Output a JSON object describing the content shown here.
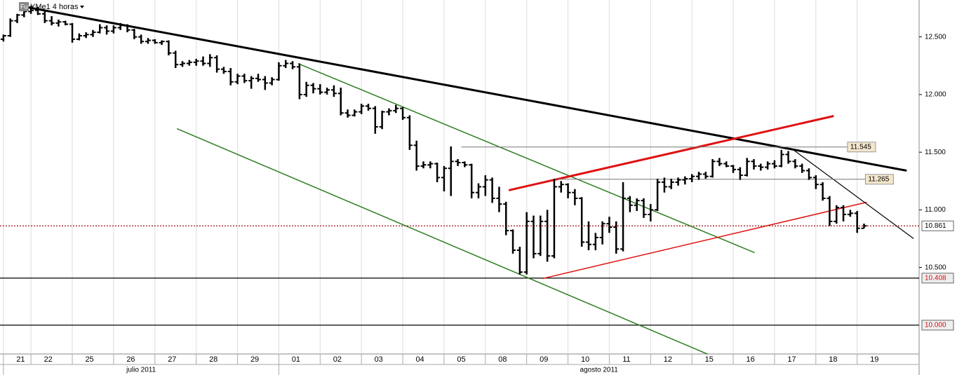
{
  "chart_data": {
    "type": "ohlc",
    "badge": "Fu",
    "title": "YMe1 4 horas",
    "ylim": [
      9750,
      12820
    ],
    "yticks": [
      {
        "value": 10500,
        "label": "10.500"
      },
      {
        "value": 11000,
        "label": "11.000"
      },
      {
        "value": 11500,
        "label": "11.500"
      },
      {
        "value": 12000,
        "label": "12.000"
      },
      {
        "value": 12500,
        "label": "12.500"
      }
    ],
    "xlim": [
      -0.5,
      133
    ],
    "xticks": [
      {
        "value": 0,
        "label": "21"
      },
      {
        "value": 4,
        "label": "22"
      },
      {
        "value": 10,
        "label": "25"
      },
      {
        "value": 16,
        "label": "26"
      },
      {
        "value": 22,
        "label": "27"
      },
      {
        "value": 28,
        "label": "28"
      },
      {
        "value": 34,
        "label": "29"
      },
      {
        "value": 40,
        "label": "01"
      },
      {
        "value": 46,
        "label": "02"
      },
      {
        "value": 52,
        "label": "03"
      },
      {
        "value": 58,
        "label": "04"
      },
      {
        "value": 64,
        "label": "05"
      },
      {
        "value": 70,
        "label": "08"
      },
      {
        "value": 76,
        "label": "09"
      },
      {
        "value": 82,
        "label": "10"
      },
      {
        "value": 88,
        "label": "11"
      },
      {
        "value": 94,
        "label": "12"
      },
      {
        "value": 100,
        "label": "15"
      },
      {
        "value": 106,
        "label": "16"
      },
      {
        "value": 112,
        "label": "17"
      },
      {
        "value": 118,
        "label": "18"
      },
      {
        "value": 124,
        "label": "19"
      }
    ],
    "months": [
      {
        "value": 0,
        "label": "julio 2011"
      },
      {
        "value": 40,
        "label": "agosto 2011"
      }
    ],
    "grid": "x",
    "color": "#000000",
    "ohlc": [
      [
        12480,
        12520,
        12460,
        12510
      ],
      [
        12510,
        12660,
        12500,
        12640
      ],
      [
        12640,
        12700,
        12620,
        12690
      ],
      [
        12690,
        12740,
        12670,
        12720
      ],
      [
        12720,
        12770,
        12700,
        12730
      ],
      [
        12730,
        12760,
        12690,
        12700
      ],
      [
        12700,
        12720,
        12620,
        12640
      ],
      [
        12640,
        12680,
        12600,
        12620
      ],
      [
        12620,
        12650,
        12590,
        12630
      ],
      [
        12630,
        12640,
        12600,
        12610
      ],
      [
        12610,
        12620,
        12450,
        12480
      ],
      [
        12480,
        12530,
        12470,
        12510
      ],
      [
        12510,
        12540,
        12490,
        12520
      ],
      [
        12520,
        12560,
        12500,
        12540
      ],
      [
        12540,
        12610,
        12530,
        12580
      ],
      [
        12580,
        12600,
        12520,
        12550
      ],
      [
        12550,
        12600,
        12530,
        12580
      ],
      [
        12580,
        12620,
        12560,
        12600
      ],
      [
        12600,
        12610,
        12540,
        12560
      ],
      [
        12560,
        12570,
        12480,
        12500
      ],
      [
        12500,
        12520,
        12440,
        12460
      ],
      [
        12460,
        12490,
        12440,
        12470
      ],
      [
        12470,
        12480,
        12440,
        12450
      ],
      [
        12450,
        12470,
        12430,
        12460
      ],
      [
        12460,
        12470,
        12340,
        12360
      ],
      [
        12360,
        12380,
        12230,
        12260
      ],
      [
        12260,
        12290,
        12240,
        12270
      ],
      [
        12270,
        12300,
        12250,
        12280
      ],
      [
        12280,
        12310,
        12250,
        12290
      ],
      [
        12290,
        12330,
        12250,
        12270
      ],
      [
        12270,
        12350,
        12240,
        12320
      ],
      [
        12320,
        12340,
        12190,
        12220
      ],
      [
        12220,
        12240,
        12180,
        12200
      ],
      [
        12200,
        12230,
        12080,
        12110
      ],
      [
        12110,
        12180,
        12090,
        12160
      ],
      [
        12160,
        12180,
        12100,
        12120
      ],
      [
        12120,
        12160,
        12050,
        12140
      ],
      [
        12140,
        12180,
        12110,
        12130
      ],
      [
        12130,
        12160,
        12040,
        12100
      ],
      [
        12100,
        12150,
        12080,
        12130
      ],
      [
        12130,
        12280,
        12120,
        12250
      ],
      [
        12250,
        12300,
        12230,
        12270
      ],
      [
        12270,
        12290,
        12220,
        12240
      ],
      [
        12240,
        12270,
        11960,
        12000
      ],
      [
        12000,
        12110,
        11980,
        12080
      ],
      [
        12080,
        12100,
        12010,
        12050
      ],
      [
        12050,
        12090,
        12000,
        12020
      ],
      [
        12020,
        12060,
        12000,
        12040
      ],
      [
        12040,
        12080,
        11980,
        12010
      ],
      [
        12010,
        12060,
        11820,
        11840
      ],
      [
        11840,
        11870,
        11800,
        11820
      ],
      [
        11820,
        11870,
        11810,
        11850
      ],
      [
        11850,
        11920,
        11830,
        11900
      ],
      [
        11900,
        11920,
        11860,
        11880
      ],
      [
        11880,
        11900,
        11660,
        11720
      ],
      [
        11720,
        11860,
        11700,
        11850
      ],
      [
        11850,
        11880,
        11820,
        11860
      ],
      [
        11860,
        11910,
        11840,
        11880
      ],
      [
        11880,
        11890,
        11780,
        11800
      ],
      [
        11800,
        11820,
        11520,
        11560
      ],
      [
        11560,
        11600,
        11340,
        11380
      ],
      [
        11380,
        11420,
        11360,
        11390
      ],
      [
        11390,
        11420,
        11360,
        11400
      ],
      [
        11400,
        11410,
        11240,
        11280
      ],
      [
        11280,
        11380,
        11160,
        11360
      ],
      [
        11360,
        11550,
        11120,
        11420
      ],
      [
        11420,
        11440,
        11380,
        11410
      ],
      [
        11410,
        11420,
        11370,
        11390
      ],
      [
        11390,
        11400,
        11100,
        11150
      ],
      [
        11150,
        11230,
        11100,
        11200
      ],
      [
        11200,
        11300,
        11120,
        11260
      ],
      [
        11260,
        11280,
        11060,
        11100
      ],
      [
        11100,
        11200,
        10980,
        11050
      ],
      [
        11050,
        11070,
        10780,
        10820
      ],
      [
        10820,
        10830,
        10620,
        10650
      ],
      [
        10650,
        10680,
        10440,
        10460
      ],
      [
        10460,
        10980,
        10440,
        10900
      ],
      [
        10900,
        10950,
        10580,
        10620
      ],
      [
        10620,
        10950,
        10600,
        10900
      ],
      [
        10900,
        11000,
        10550,
        10600
      ],
      [
        10600,
        11270,
        10580,
        11200
      ],
      [
        11200,
        11250,
        11150,
        11220
      ],
      [
        11220,
        11230,
        11100,
        11150
      ],
      [
        11150,
        11180,
        11040,
        11100
      ],
      [
        11100,
        11110,
        10680,
        10720
      ],
      [
        10720,
        10900,
        10650,
        10700
      ],
      [
        10700,
        10800,
        10650,
        10760
      ],
      [
        10760,
        10900,
        10700,
        10880
      ],
      [
        10880,
        10940,
        10800,
        10850
      ],
      [
        10850,
        10900,
        10620,
        10660
      ],
      [
        10660,
        11240,
        10640,
        11100
      ],
      [
        11100,
        11120,
        10980,
        11040
      ],
      [
        11040,
        11100,
        10990,
        11080
      ],
      [
        11080,
        11100,
        10930,
        10960
      ],
      [
        10960,
        11050,
        10900,
        11000
      ],
      [
        11000,
        11270,
        10990,
        11240
      ],
      [
        11240,
        11280,
        11150,
        11200
      ],
      [
        11200,
        11270,
        11180,
        11240
      ],
      [
        11240,
        11280,
        11210,
        11260
      ],
      [
        11260,
        11290,
        11220,
        11270
      ],
      [
        11270,
        11310,
        11240,
        11290
      ],
      [
        11290,
        11330,
        11260,
        11310
      ],
      [
        11310,
        11330,
        11270,
        11290
      ],
      [
        11290,
        11440,
        11280,
        11420
      ],
      [
        11420,
        11450,
        11380,
        11400
      ],
      [
        11400,
        11420,
        11370,
        11380
      ],
      [
        11380,
        11390,
        11320,
        11350
      ],
      [
        11350,
        11370,
        11260,
        11300
      ],
      [
        11300,
        11450,
        11290,
        11420
      ],
      [
        11420,
        11440,
        11350,
        11380
      ],
      [
        11380,
        11400,
        11340,
        11370
      ],
      [
        11370,
        11420,
        11350,
        11400
      ],
      [
        11400,
        11430,
        11360,
        11380
      ],
      [
        11380,
        11520,
        11370,
        11480
      ],
      [
        11480,
        11510,
        11400,
        11420
      ],
      [
        11420,
        11440,
        11360,
        11380
      ],
      [
        11380,
        11400,
        11320,
        11340
      ],
      [
        11340,
        11360,
        11260,
        11280
      ],
      [
        11280,
        11300,
        11180,
        11220
      ],
      [
        11220,
        11240,
        11080,
        11100
      ],
      [
        11100,
        11120,
        10860,
        10900
      ],
      [
        10900,
        11040,
        10880,
        11020
      ],
      [
        11020,
        11040,
        10900,
        10960
      ],
      [
        10960,
        11000,
        10940,
        10970
      ],
      [
        10970,
        10990,
        10800,
        10840
      ],
      [
        10840,
        10880,
        10840,
        10861
      ]
    ],
    "lines": [
      {
        "x": [
          2.6,
          131.2
        ],
        "y": [
          12767,
          11340
        ],
        "color": "#000000",
        "width": 3
      },
      {
        "x": [
          42.8,
          109.1
        ],
        "y": [
          12269,
          10629
        ],
        "color": "#2e7d22",
        "width": 1.5
      },
      {
        "x": [
          25.2,
          102.3
        ],
        "y": [
          11704,
          9748
        ],
        "color": "#2e7d22",
        "width": 1.5
      },
      {
        "x": [
          73.4,
          120.6
        ],
        "y": [
          11170,
          11814
        ],
        "color": "#e01010",
        "width": 3
      },
      {
        "x": [
          78.3,
          125.4
        ],
        "y": [
          10404,
          11066
        ],
        "color": "#e01010",
        "width": 1.5
      },
      {
        "x": [
          114.7,
          132.2
        ],
        "y": [
          11522,
          10751
        ],
        "color": "#000000",
        "width": 1.2
      }
    ],
    "segments": [
      {
        "x": [
          66.5,
          122.8
        ],
        "value": 11545,
        "label": "11.545"
      },
      {
        "x": [
          80.5,
          125.4
        ],
        "value": 11265,
        "label": "11.265"
      }
    ],
    "levels": [
      {
        "value": 10861,
        "label": "10.861",
        "color": "#a01010",
        "style": "dotted",
        "label_color": "#000000"
      },
      {
        "value": 10408,
        "label": "10.408",
        "color": "#000000",
        "style": "solid",
        "label_color": "#d01010"
      },
      {
        "value": 10000,
        "label": "10.000",
        "color": "#000000",
        "style": "solid",
        "label_color": "#d01010"
      }
    ]
  }
}
